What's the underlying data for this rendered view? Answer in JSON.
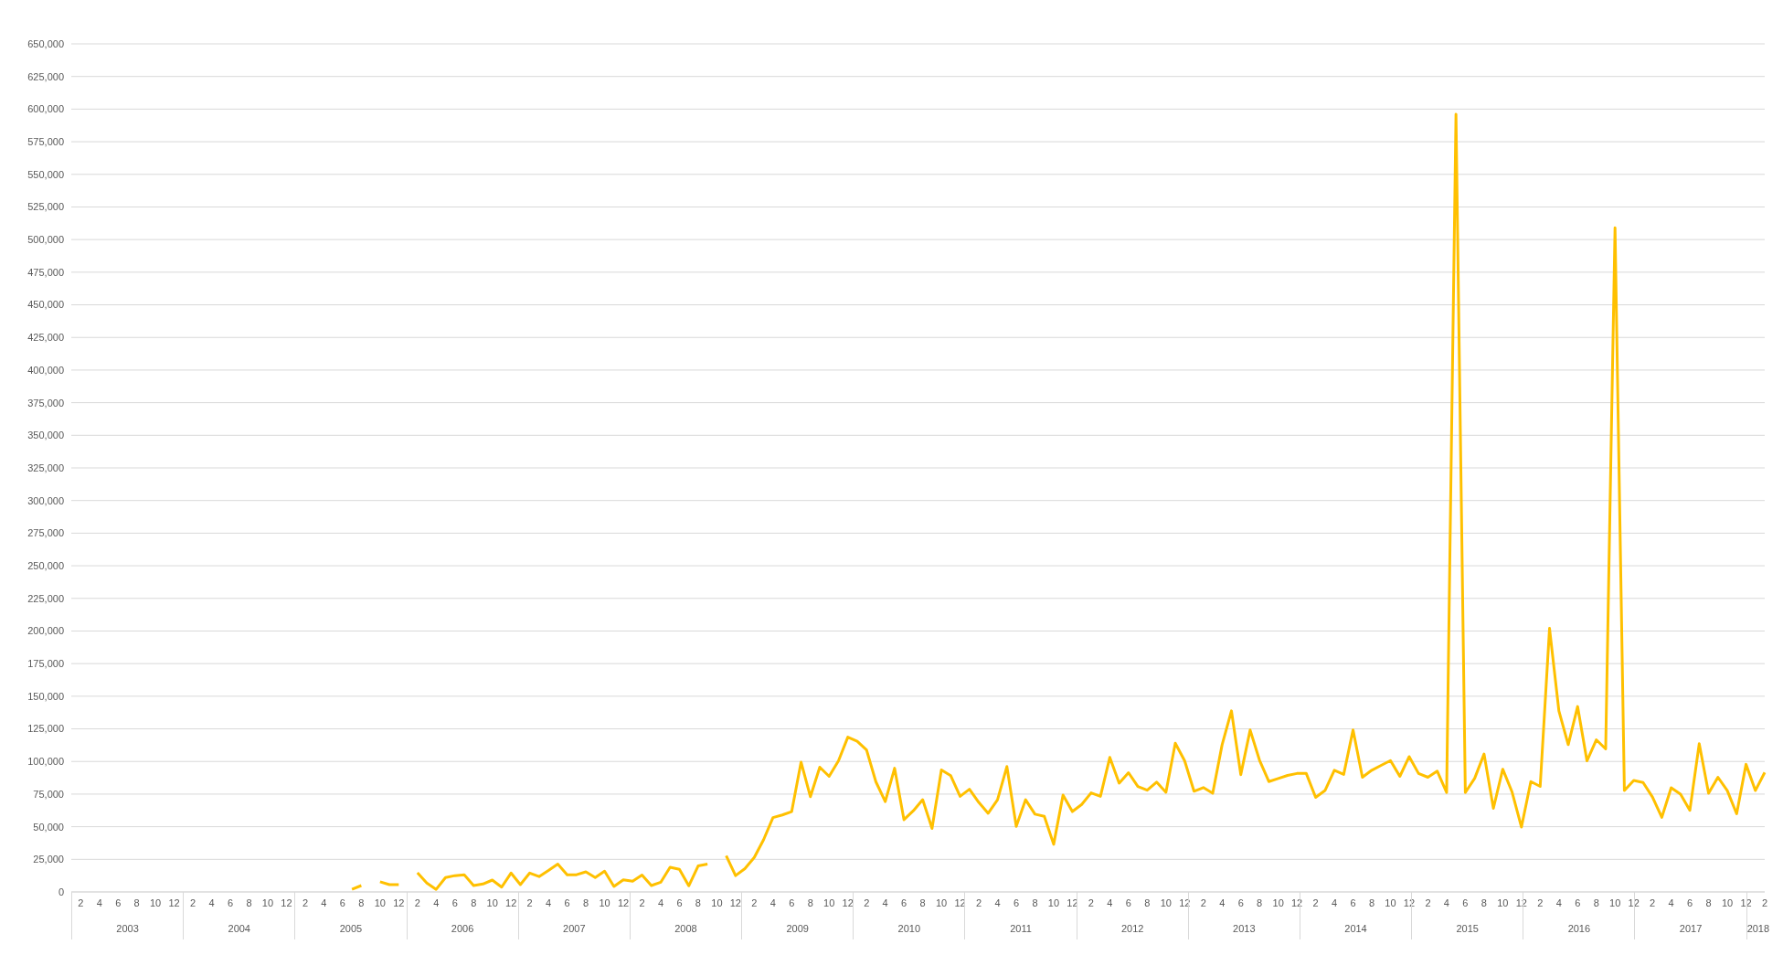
{
  "chart_data": {
    "type": "line",
    "color": "#ffc000",
    "categories": [
      null,
      "2",
      null,
      "4",
      null,
      "6",
      null,
      "8",
      null,
      "10",
      null,
      "12",
      null,
      "2",
      null,
      "4",
      null,
      "6",
      null,
      "8",
      null,
      "10",
      null,
      "12",
      null,
      "2",
      null,
      "4",
      null,
      "6",
      null,
      "8",
      null,
      "10",
      null,
      "12",
      null,
      "2",
      null,
      "4",
      null,
      "6",
      null,
      "8",
      null,
      "10",
      null,
      "12",
      null,
      "2",
      null,
      "4",
      null,
      "6",
      null,
      "8",
      null,
      "10",
      null,
      "12",
      null,
      "2",
      null,
      "4",
      null,
      "6",
      null,
      "8",
      null,
      "10",
      null,
      "12",
      null,
      "2",
      null,
      "4",
      null,
      "6",
      null,
      "8",
      null,
      "10",
      null,
      "12",
      null,
      "2",
      null,
      "4",
      null,
      "6",
      null,
      "8",
      null,
      "10",
      null,
      "12",
      null,
      "2",
      null,
      "4",
      null,
      "6",
      null,
      "8",
      null,
      "10",
      null,
      "12",
      null,
      "2",
      null,
      "4",
      null,
      "6",
      null,
      "8",
      null,
      "10",
      null,
      "12",
      null,
      "2",
      null,
      "4",
      null,
      "6",
      null,
      "8",
      null,
      "10",
      null,
      "12",
      null,
      "2",
      null,
      "4",
      null,
      "6",
      null,
      "8",
      null,
      "10",
      null,
      "12",
      null,
      "2",
      null,
      "4",
      null,
      "6",
      null,
      "8",
      null,
      "10",
      null,
      "12",
      null,
      "2",
      null,
      "4",
      null,
      "6",
      null,
      "8",
      null,
      "10",
      null,
      "12",
      null,
      "2",
      null,
      "4",
      null,
      "6",
      null,
      "8",
      null,
      "10",
      null,
      "12",
      null,
      "2"
    ],
    "values": [
      null,
      null,
      null,
      null,
      null,
      null,
      null,
      null,
      null,
      null,
      null,
      null,
      null,
      null,
      null,
      null,
      null,
      null,
      null,
      null,
      null,
      null,
      null,
      null,
      null,
      null,
      null,
      null,
      null,
      null,
      2000,
      4900,
      null,
      7800,
      5600,
      5600,
      null,
      14700,
      6900,
      2000,
      11000,
      12500,
      13200,
      4900,
      6100,
      9100,
      3700,
      14500,
      5600,
      14500,
      11800,
      16400,
      21300,
      13200,
      13200,
      15400,
      11000,
      15900,
      4200,
      9300,
      8300,
      13000,
      4900,
      7400,
      18900,
      17400,
      4700,
      19900,
      21300,
      null,
      27700,
      12500,
      17900,
      26400,
      40100,
      57000,
      59000,
      61600,
      99500,
      73000,
      95600,
      88600,
      100500,
      118600,
      115500,
      108800,
      84400,
      69200,
      94800,
      55400,
      62200,
      70700,
      48700,
      93500,
      89100,
      73300,
      78700,
      68600,
      60300,
      70700,
      96100,
      50200,
      70700,
      59600,
      58000,
      36500,
      74300,
      61600,
      67100,
      75900,
      73300,
      103100,
      83400,
      91400,
      80800,
      78000,
      84200,
      76400,
      114000,
      100500,
      77200,
      80000,
      75600,
      112700,
      138800,
      89900,
      124100,
      101000,
      84600,
      86900,
      89300,
      90800,
      90800,
      72500,
      77700,
      93300,
      90100,
      124200,
      87900,
      93300,
      97000,
      100700,
      88600,
      103700,
      90800,
      87900,
      92600,
      76200,
      596000,
      76200,
      87100,
      105700,
      64100,
      94100,
      76500,
      49700,
      84600,
      80900,
      202000,
      138800,
      112900,
      142100,
      100500,
      116600,
      109600,
      509000,
      77700,
      85400,
      83900,
      72800,
      57200,
      79900,
      75000,
      62600,
      113600,
      75700,
      87900,
      77700,
      59900,
      97800,
      77700,
      91600
    ],
    "annotations": [
      "2003",
      "2004",
      "2005",
      "2006",
      "2007",
      "2008",
      "2009",
      "2010",
      "2011",
      "2012",
      "2013",
      "2014",
      "2015",
      "2016",
      "2017",
      "2018"
    ],
    "ylim": [
      0,
      650000
    ],
    "yticks": [
      0,
      {
        "value": 25000,
        "label": "25,000"
      },
      {
        "value": 50000,
        "label": "50,000"
      },
      {
        "value": 75000,
        "label": "75,000"
      },
      {
        "value": 100000,
        "label": "100,000"
      },
      {
        "value": 125000,
        "label": "125,000"
      },
      {
        "value": 150000,
        "label": "150,000"
      },
      {
        "value": 175000,
        "label": "175,000"
      },
      {
        "value": 200000,
        "label": "200,000"
      },
      {
        "value": 225000,
        "label": "225,000"
      },
      {
        "value": 250000,
        "label": "250,000"
      },
      {
        "value": 275000,
        "label": "275,000"
      },
      {
        "value": 300000,
        "label": "300,000"
      },
      {
        "value": 325000,
        "label": "325,000"
      },
      {
        "value": 350000,
        "label": "350,000"
      },
      {
        "value": 375000,
        "label": "375,000"
      },
      {
        "value": 400000,
        "label": "400,000"
      },
      {
        "value": 425000,
        "label": "425,000"
      },
      {
        "value": 450000,
        "label": "450,000"
      },
      {
        "value": 475000,
        "label": "475,000"
      },
      {
        "value": 500000,
        "label": "500,000"
      },
      {
        "value": 525000,
        "label": "525,000"
      },
      {
        "value": 550000,
        "label": "550,000"
      },
      {
        "value": 575000,
        "label": "575,000"
      },
      {
        "value": 600000,
        "label": "600,000"
      },
      {
        "value": 625000,
        "label": "625,000"
      },
      {
        "value": 650000,
        "label": "650,000"
      }
    ],
    "grid": "y",
    "marker": "none",
    "line_style": "solid"
  }
}
